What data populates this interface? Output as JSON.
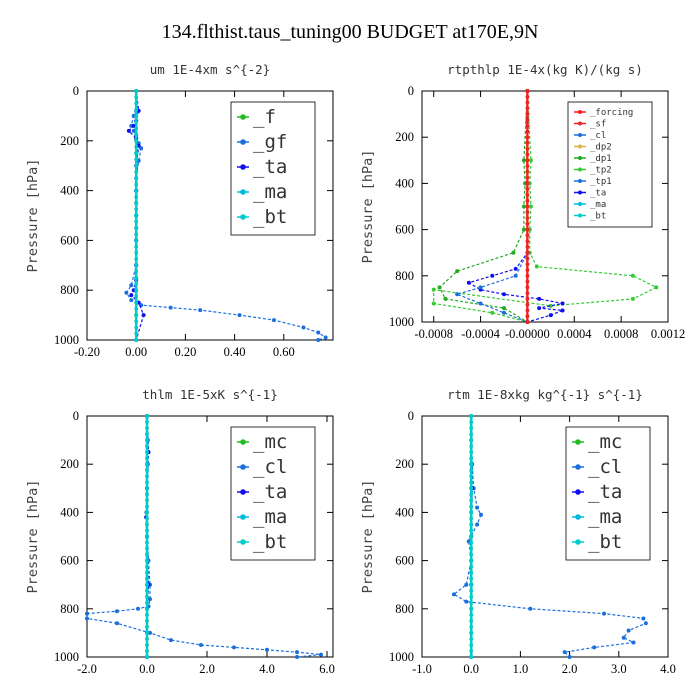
{
  "title": "134.flthist.taus_tuning00  BUDGET at170E,9N",
  "colors": {
    "_f": "#22bb22",
    "_gf": "#1a6fdf",
    "_ta": "#1010ee",
    "_ma": "#00bbdd",
    "_bt": "#00cccc",
    "_mc": "#22bb22",
    "_cl": "#1a6fdf",
    "_forcing": "#ff1a1a",
    "_sf": "#ee2222",
    "_dp2": "#e0b040",
    "_dp1": "#22aa22",
    "_tp2": "#33cc33",
    "_tp1": "#1a6fdf"
  },
  "chart_data": [
    {
      "type": "line",
      "title": "um   1E-4xm s^{-2}",
      "ylabel": "Pressure [hPa]",
      "xlim": [
        -0.2,
        0.8
      ],
      "ylim": [
        1000,
        0
      ],
      "xticks": [
        "-0.20",
        "0.00",
        "0.20",
        "0.40",
        "0.60"
      ],
      "xtick_values": [
        -0.2,
        0.0,
        0.2,
        0.4,
        0.6
      ],
      "yticks": [
        "0",
        "200",
        "400",
        "600",
        "800",
        "1000"
      ],
      "ytick_values": [
        0,
        200,
        400,
        600,
        800,
        1000
      ],
      "legend_position": "top-right",
      "legend_size": "large",
      "legend": [
        "_f",
        "_gf",
        "_ta",
        "_ma",
        "_bt"
      ],
      "series": [
        {
          "name": "_f",
          "x": [
            0,
            0,
            0,
            0,
            0,
            0,
            0,
            0,
            0,
            0,
            0
          ],
          "y": [
            0,
            100,
            200,
            300,
            400,
            500,
            600,
            700,
            800,
            900,
            1000
          ]
        },
        {
          "name": "_gf",
          "x": [
            0.0,
            0.0,
            -0.01,
            -0.02,
            -0.01,
            0.0,
            0.0,
            0.01,
            0.02,
            0.01,
            0.0,
            0.0,
            0.0,
            0.0,
            0.0,
            0.0,
            0.0,
            -0.02,
            -0.04,
            -0.02,
            0.02,
            0.14,
            0.26,
            0.42,
            0.56,
            0.68,
            0.74,
            0.77,
            0.74
          ],
          "y": [
            0,
            80,
            100,
            140,
            160,
            175,
            190,
            210,
            230,
            280,
            350,
            400,
            450,
            500,
            550,
            600,
            700,
            780,
            810,
            840,
            860,
            870,
            880,
            900,
            920,
            950,
            970,
            990,
            1000
          ]
        },
        {
          "name": "_ta",
          "x": [
            0,
            0.01,
            0,
            -0.01,
            -0.03,
            0,
            0.01,
            0,
            0,
            0,
            0,
            0,
            0,
            -0.01,
            -0.02,
            0.01,
            0.03,
            0
          ],
          "y": [
            0,
            80,
            120,
            140,
            160,
            190,
            220,
            300,
            400,
            500,
            600,
            700,
            760,
            800,
            820,
            850,
            900,
            1000
          ]
        },
        {
          "name": "_ma",
          "x": [
            0,
            0,
            0,
            0,
            0
          ],
          "y": [
            0,
            250,
            500,
            750,
            1000
          ]
        },
        {
          "name": "_bt",
          "x": [
            0,
            0,
            0,
            0,
            0
          ],
          "y": [
            0,
            250,
            500,
            750,
            1000
          ]
        }
      ]
    },
    {
      "type": "line",
      "title": "rtpthlp   1E-4x(kg K)/(kg s)",
      "ylabel": "Pressure [hPa]",
      "xlim": [
        -0.0009,
        0.0012
      ],
      "ylim": [
        1000,
        0
      ],
      "xticks": [
        "-0.0008",
        "-0.0004",
        "-0.00000",
        "0.0004",
        "0.0008",
        "0.0012"
      ],
      "xtick_values": [
        -0.0008,
        -0.0004,
        0.0,
        0.0004,
        0.0008,
        0.0012
      ],
      "yticks": [
        "0",
        "200",
        "400",
        "600",
        "800",
        "1000"
      ],
      "ytick_values": [
        0,
        200,
        400,
        600,
        800,
        1000
      ],
      "legend_position": "top-right",
      "legend_size": "small",
      "legend": [
        "_forcing",
        "_sf",
        "_cl",
        "_dp2",
        "_dp1",
        "_tp2",
        "_tp1",
        "_ta",
        "_ma",
        "_bt"
      ],
      "series": [
        {
          "name": "_tp2",
          "x": [
            0,
            3e-05,
            2e-05,
            3e-05,
            2e-05,
            2e-05,
            8e-05,
            0.0009,
            0.0011,
            0.0009,
            0.0002,
            -0.0008,
            -0.0008,
            -0.0003,
            0
          ],
          "y": [
            0,
            300,
            400,
            500,
            600,
            700,
            760,
            800,
            850,
            900,
            930,
            860,
            920,
            960,
            1000
          ]
        },
        {
          "name": "_dp1",
          "x": [
            0,
            -3e-05,
            -2e-05,
            -3e-05,
            -3e-05,
            -0.00012,
            -0.0006,
            -0.00075,
            -0.0007,
            -0.0002,
            0
          ],
          "y": [
            0,
            300,
            400,
            500,
            600,
            700,
            780,
            850,
            900,
            940,
            1000
          ]
        },
        {
          "name": "_ta",
          "x": [
            0,
            0,
            -0.0001,
            -0.0003,
            -0.0005,
            -0.0004,
            -0.0002,
            0.0001,
            0.0003,
            0.0001,
            0.0003,
            0.0002,
            0
          ],
          "y": [
            0,
            700,
            770,
            800,
            830,
            860,
            880,
            900,
            920,
            940,
            950,
            970,
            1000
          ]
        },
        {
          "name": "_tp1",
          "x": [
            0,
            0,
            -0.0001,
            -0.0004,
            -0.0006,
            -0.0004,
            -0.0002,
            0
          ],
          "y": [
            0,
            700,
            800,
            850,
            880,
            920,
            960,
            1000
          ]
        },
        {
          "name": "_forcing",
          "x": [
            0,
            0
          ],
          "y": [
            0,
            1000
          ]
        },
        {
          "name": "_sf",
          "x": [
            0,
            0
          ],
          "y": [
            0,
            1000
          ]
        }
      ]
    },
    {
      "type": "line",
      "title": "thlm   1E-5xK s^{-1}",
      "ylabel": "Pressure [hPa]",
      "xlim": [
        -2.0,
        6.2
      ],
      "ylim": [
        1000,
        0
      ],
      "xticks": [
        "-2.0",
        "0.0",
        "2.0",
        "4.0",
        "6.0"
      ],
      "xtick_values": [
        -2.0,
        0.0,
        2.0,
        4.0,
        6.0
      ],
      "yticks": [
        "0",
        "200",
        "400",
        "600",
        "800",
        "1000"
      ],
      "ytick_values": [
        0,
        200,
        400,
        600,
        800,
        1000
      ],
      "legend_position": "top-right",
      "legend_size": "large",
      "legend": [
        "_mc",
        "_cl",
        "_ta",
        "_ma",
        "_bt"
      ],
      "series": [
        {
          "name": "_mc",
          "x": [
            0,
            0,
            0,
            0,
            0,
            0,
            0,
            0,
            0,
            0,
            0
          ],
          "y": [
            0,
            100,
            200,
            300,
            400,
            500,
            600,
            700,
            800,
            900,
            1000
          ]
        },
        {
          "name": "_cl",
          "x": [
            0,
            0.03,
            0.05,
            0.03,
            0,
            -0.02,
            0,
            0.05,
            0.1,
            0.1,
            0.05,
            -0.3,
            -1.0,
            -2.0,
            -2.0,
            -1.0,
            0.1,
            0.8,
            1.8,
            2.9,
            4.0,
            5.0,
            5.8,
            5.0
          ],
          "y": [
            0,
            100,
            150,
            200,
            300,
            400,
            500,
            600,
            700,
            760,
            790,
            800,
            810,
            820,
            840,
            860,
            900,
            930,
            950,
            960,
            970,
            980,
            990,
            1000
          ]
        },
        {
          "name": "_ta",
          "x": [
            0,
            0.05,
            0,
            -0.03,
            0,
            0.05,
            0,
            0
          ],
          "y": [
            0,
            150,
            300,
            420,
            500,
            700,
            800,
            1000
          ]
        },
        {
          "name": "_ma",
          "x": [
            0,
            0
          ],
          "y": [
            0,
            1000
          ]
        },
        {
          "name": "_bt",
          "x": [
            0,
            0
          ],
          "y": [
            0,
            1000
          ]
        }
      ]
    },
    {
      "type": "line",
      "title": "rtm   1E-8xkg kg^{-1} s^{-1}",
      "ylabel": "Pressure [hPa]",
      "xlim": [
        -1.0,
        4.0
      ],
      "ylim": [
        1000,
        0
      ],
      "xticks": [
        "-1.0",
        "0.0",
        "1.0",
        "2.0",
        "3.0",
        "4.0"
      ],
      "xtick_values": [
        -1.0,
        0.0,
        1.0,
        2.0,
        3.0,
        4.0
      ],
      "yticks": [
        "0",
        "200",
        "400",
        "600",
        "800",
        "1000"
      ],
      "ytick_values": [
        0,
        200,
        400,
        600,
        800,
        1000
      ],
      "legend_position": "top-right",
      "legend_size": "large",
      "legend": [
        "_mc",
        "_cl",
        "_ta",
        "_ma",
        "_bt"
      ],
      "series": [
        {
          "name": "_mc",
          "x": [
            0,
            0,
            0,
            0,
            0,
            0,
            0,
            0,
            0,
            0,
            0
          ],
          "y": [
            0,
            100,
            200,
            300,
            400,
            500,
            600,
            700,
            800,
            900,
            1000
          ]
        },
        {
          "name": "_cl",
          "x": [
            0,
            0.02,
            0.05,
            0.12,
            0.2,
            0.12,
            -0.05,
            0,
            -0.1,
            -0.35,
            -0.1,
            1.2,
            2.7,
            3.5,
            3.55,
            3.2,
            3.1,
            3.3,
            2.5,
            1.9,
            2.0
          ],
          "y": [
            0,
            200,
            300,
            380,
            410,
            450,
            520,
            600,
            700,
            740,
            770,
            800,
            820,
            840,
            860,
            890,
            920,
            940,
            960,
            980,
            1000
          ]
        },
        {
          "name": "_ta",
          "x": [
            0,
            0.02,
            0,
            0,
            0
          ],
          "y": [
            0,
            300,
            500,
            700,
            1000
          ]
        },
        {
          "name": "_ma",
          "x": [
            0,
            0
          ],
          "y": [
            0,
            1000
          ]
        },
        {
          "name": "_bt",
          "x": [
            0,
            0
          ],
          "y": [
            0,
            1000
          ]
        }
      ]
    }
  ]
}
